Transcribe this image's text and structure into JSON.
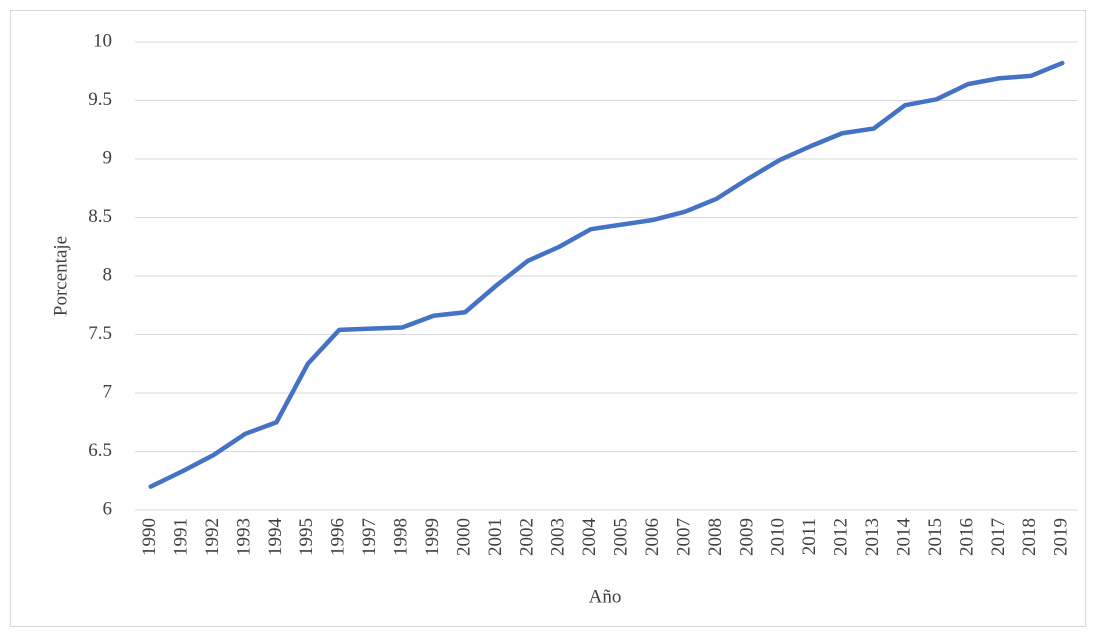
{
  "chart_data": {
    "type": "line",
    "y_label": "Porcentaje",
    "x_label": "Año",
    "categories": [
      "1990",
      "1991",
      "1992",
      "1993",
      "1994",
      "1995",
      "1996",
      "1997",
      "1998",
      "1999",
      "2000",
      "2001",
      "2002",
      "2003",
      "2004",
      "2005",
      "2006",
      "2007",
      "2008",
      "2009",
      "2010",
      "2011",
      "2012",
      "2013",
      "2014",
      "2015",
      "2016",
      "2017",
      "2018",
      "2019"
    ],
    "series": [
      {
        "name": "Porcentaje",
        "color": "#4472c4",
        "values": [
          6.2,
          6.33,
          6.47,
          6.65,
          6.75,
          7.25,
          7.54,
          7.55,
          7.56,
          7.66,
          7.69,
          7.92,
          8.13,
          8.25,
          8.4,
          8.44,
          8.48,
          8.55,
          8.66,
          8.83,
          8.99,
          9.11,
          9.22,
          9.26,
          9.46,
          9.51,
          9.64,
          9.69,
          9.71,
          9.82
        ]
      }
    ],
    "ylim": [
      6,
      10
    ],
    "yticks": [
      6,
      6.5,
      7,
      7.5,
      8,
      8.5,
      9,
      9.5,
      10
    ],
    "grid": true
  }
}
